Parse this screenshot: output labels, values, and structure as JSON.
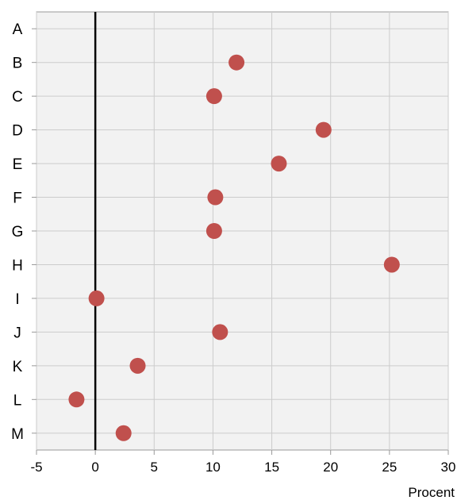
{
  "chart_data": {
    "type": "scatter",
    "title": "",
    "xlabel": "Procent",
    "ylabel": "",
    "xlim": [
      -5,
      30
    ],
    "x_ticks": [
      -5,
      0,
      5,
      10,
      15,
      20,
      25,
      30
    ],
    "categories": [
      "A",
      "B",
      "C",
      "D",
      "E",
      "F",
      "G",
      "H",
      "I",
      "J",
      "K",
      "L",
      "M"
    ],
    "series": [
      {
        "values": [
          null,
          12.0,
          10.1,
          19.4,
          15.6,
          10.2,
          10.1,
          25.2,
          0.1,
          10.6,
          3.6,
          -1.6,
          2.4
        ]
      }
    ],
    "zero_line": 0,
    "grid": true,
    "colors": {
      "plot_background": "#f2f2f2",
      "grid": "#cccccc",
      "marker": "#c0504d",
      "zero_line": "#000000",
      "axis": "#999999"
    }
  }
}
